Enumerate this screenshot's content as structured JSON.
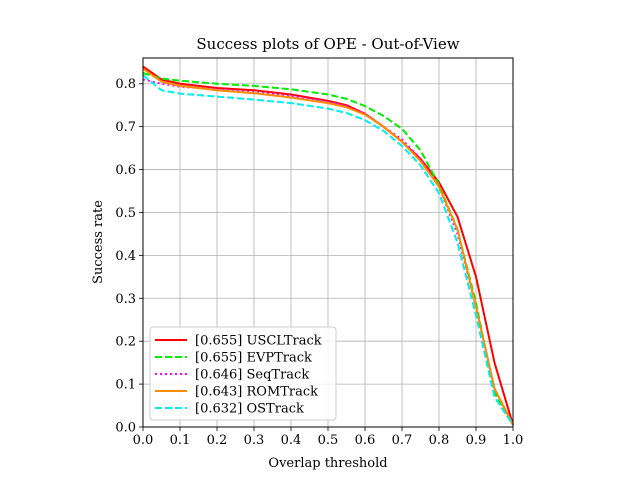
{
  "chart_data": {
    "type": "line",
    "title": "Success plots of OPE - Out-of-View",
    "xlabel": "Overlap threshold",
    "ylabel": "Success rate",
    "xlim": [
      0.0,
      1.0
    ],
    "ylim": [
      0.0,
      0.86
    ],
    "xticks": [
      "0.0",
      "0.1",
      "0.2",
      "0.3",
      "0.4",
      "0.5",
      "0.6",
      "0.7",
      "0.8",
      "0.9",
      "1.0"
    ],
    "yticks": [
      "0.0",
      "0.1",
      "0.2",
      "0.3",
      "0.4",
      "0.5",
      "0.6",
      "0.7",
      "0.8"
    ],
    "grid": true,
    "legend_position": "lower-left",
    "series": [
      {
        "name": "[0.655] USCLTrack",
        "color": "#ff0000",
        "dash": "solid",
        "x": [
          0.0,
          0.05,
          0.1,
          0.2,
          0.3,
          0.4,
          0.5,
          0.55,
          0.6,
          0.65,
          0.7,
          0.75,
          0.8,
          0.85,
          0.9,
          0.95,
          1.0
        ],
        "y": [
          0.84,
          0.81,
          0.8,
          0.79,
          0.785,
          0.775,
          0.76,
          0.75,
          0.73,
          0.7,
          0.665,
          0.625,
          0.57,
          0.49,
          0.35,
          0.15,
          0.005
        ]
      },
      {
        "name": "[0.655] EVPTrack",
        "color": "#00ee00",
        "dash": "dashed",
        "x": [
          0.0,
          0.05,
          0.1,
          0.2,
          0.3,
          0.4,
          0.5,
          0.55,
          0.6,
          0.65,
          0.7,
          0.75,
          0.8,
          0.85,
          0.9,
          0.95,
          1.0
        ],
        "y": [
          0.825,
          0.812,
          0.807,
          0.8,
          0.795,
          0.787,
          0.775,
          0.765,
          0.748,
          0.725,
          0.695,
          0.645,
          0.565,
          0.46,
          0.29,
          0.08,
          0.005
        ]
      },
      {
        "name": "[0.646] SeqTrack",
        "color": "#ff00ff",
        "dash": "dotted",
        "x": [
          0.0,
          0.05,
          0.1,
          0.2,
          0.3,
          0.4,
          0.5,
          0.55,
          0.6,
          0.65,
          0.7,
          0.75,
          0.8,
          0.85,
          0.9,
          0.95,
          1.0
        ],
        "y": [
          0.81,
          0.8,
          0.793,
          0.787,
          0.78,
          0.772,
          0.758,
          0.748,
          0.73,
          0.7,
          0.67,
          0.625,
          0.56,
          0.45,
          0.28,
          0.09,
          0.005
        ]
      },
      {
        "name": "[0.643] ROMTrack",
        "color": "#ff8c00",
        "dash": "solid",
        "x": [
          0.0,
          0.05,
          0.1,
          0.2,
          0.3,
          0.4,
          0.5,
          0.55,
          0.6,
          0.65,
          0.7,
          0.75,
          0.8,
          0.85,
          0.9,
          0.95,
          1.0
        ],
        "y": [
          0.835,
          0.805,
          0.795,
          0.785,
          0.778,
          0.768,
          0.755,
          0.745,
          0.728,
          0.7,
          0.665,
          0.62,
          0.56,
          0.46,
          0.28,
          0.09,
          0.005
        ]
      },
      {
        "name": "[0.632] OSTrack",
        "color": "#00eeee",
        "dash": "dashed",
        "x": [
          0.0,
          0.05,
          0.1,
          0.2,
          0.3,
          0.4,
          0.5,
          0.55,
          0.6,
          0.65,
          0.7,
          0.75,
          0.8,
          0.85,
          0.9,
          0.95,
          1.0
        ],
        "y": [
          0.82,
          0.785,
          0.777,
          0.77,
          0.763,
          0.755,
          0.742,
          0.732,
          0.715,
          0.69,
          0.655,
          0.61,
          0.545,
          0.43,
          0.26,
          0.07,
          0.005
        ]
      }
    ]
  }
}
